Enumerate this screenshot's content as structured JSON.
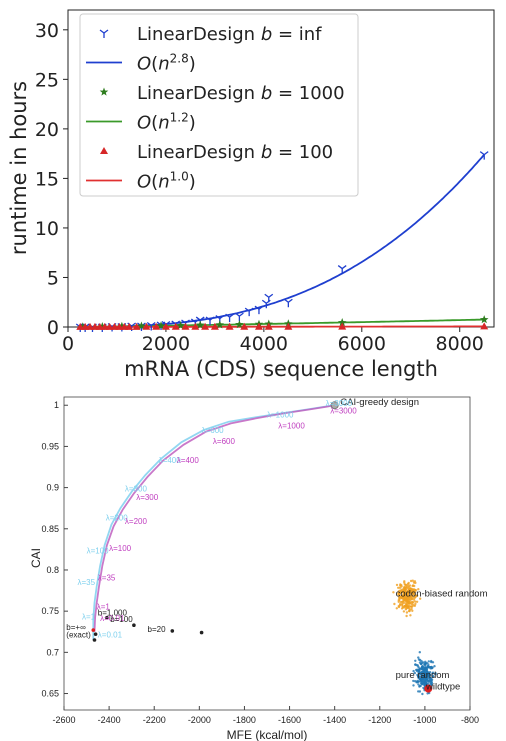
{
  "chart_data": [
    {
      "type": "scatter",
      "xlabel": "mRNA (CDS) sequence length",
      "ylabel": "runtime in hours",
      "xlim": [
        0,
        8700
      ],
      "ylim": [
        0,
        32
      ],
      "xticks": [
        "0",
        "2000",
        "4000",
        "6000",
        "8000"
      ],
      "yticks": [
        "0",
        "5",
        "10",
        "15",
        "20",
        "25",
        "30"
      ],
      "legend_position": "top-left",
      "legend": [
        {
          "label": "LinearDesign b = inf",
          "kind": "marker",
          "marker": "tri_down",
          "color": "#1f3fcf"
        },
        {
          "label": "O(n^2.8)",
          "kind": "line",
          "color": "#1f3fcf"
        },
        {
          "label": "LinearDesign b = 1000",
          "kind": "marker",
          "marker": "star",
          "color": "#2e7d1e"
        },
        {
          "label": "O(n^1.2)",
          "kind": "line",
          "color": "#3a9a2a"
        },
        {
          "label": "LinearDesign b = 100",
          "kind": "marker",
          "marker": "triangle",
          "color": "#d62728"
        },
        {
          "label": "O(n^1.0)",
          "kind": "line",
          "color": "#e03030"
        }
      ],
      "series": [
        {
          "name": "LinearDesign b = inf",
          "color": "#1f3fcf",
          "x": [
            250,
            350,
            500,
            700,
            900,
            1100,
            1300,
            1500,
            1700,
            1900,
            2000,
            2200,
            2400,
            2600,
            2700,
            2900,
            3100,
            3300,
            3500,
            3700,
            3900,
            4050,
            4100,
            4500,
            5600,
            8500
          ],
          "y": [
            0.0,
            0.0,
            0.0,
            0.0,
            0.05,
            0.05,
            0.1,
            0.1,
            0.15,
            0.2,
            0.25,
            0.3,
            0.4,
            0.5,
            0.7,
            0.7,
            0.85,
            1.0,
            1.1,
            1.6,
            1.8,
            2.4,
            3.0,
            2.5,
            5.9,
            17.4
          ]
        },
        {
          "name": "O(n^2.8)",
          "color": "#1f3fcf",
          "fit": {
            "coef": 17.4,
            "ref": 8500,
            "exp": 2.8
          }
        },
        {
          "name": "LinearDesign b = 1000",
          "color": "#2e7d1e",
          "x": [
            300,
            700,
            1100,
            1500,
            1900,
            2300,
            2700,
            3100,
            3500,
            3900,
            4100,
            4500,
            5600,
            8500
          ],
          "y": [
            0.03,
            0.05,
            0.08,
            0.1,
            0.12,
            0.15,
            0.2,
            0.22,
            0.25,
            0.28,
            0.3,
            0.32,
            0.45,
            0.75
          ]
        },
        {
          "name": "O(n^1.2)",
          "color": "#3a9a2a",
          "fit": {
            "coef": 0.75,
            "ref": 8500,
            "exp": 1.2
          }
        },
        {
          "name": "LinearDesign b = 100",
          "color": "#d62728",
          "x": [
            250,
            350,
            450,
            550,
            650,
            750,
            850,
            950,
            1050,
            1150,
            1250,
            1400,
            1600,
            1800,
            2000,
            2200,
            2400,
            2600,
            2800,
            3000,
            3300,
            3600,
            3900,
            4100,
            4500,
            5600,
            8500
          ],
          "y": [
            0.01,
            0.01,
            0.01,
            0.01,
            0.01,
            0.01,
            0.01,
            0.01,
            0.01,
            0.01,
            0.01,
            0.01,
            0.02,
            0.02,
            0.02,
            0.02,
            0.02,
            0.02,
            0.02,
            0.02,
            0.03,
            0.03,
            0.03,
            0.03,
            0.03,
            0.04,
            0.06
          ]
        },
        {
          "name": "O(n^1.0)",
          "color": "#e03030",
          "fit": {
            "coef": 0.06,
            "ref": 8500,
            "exp": 1.0
          }
        }
      ]
    },
    {
      "type": "scatter",
      "xlabel": "MFE (kcal/mol)",
      "ylabel": "CAI",
      "xlim": [
        -2600,
        -800
      ],
      "ylim": [
        0.63,
        1.01
      ],
      "xticks": [
        "-2600",
        "-2400",
        "-2200",
        "-2000",
        "-1800",
        "-1600",
        "-1400",
        "-1200",
        "-1000",
        "-800"
      ],
      "yticks": [
        "0.65",
        "0.7",
        "0.75",
        "0.8",
        "0.85",
        "0.9",
        "0.95",
        "1"
      ],
      "colors": {
        "cyan_curve": "#7fd0ee",
        "magenta_curve": "#c060c0",
        "orange_cloud": "#f0a020",
        "blue_cloud": "#1f77b4",
        "wildtype": "#e02020"
      },
      "series": [
        {
          "name": "cyan_curve",
          "color": "#7fd0ee",
          "x": [
            -2470,
            -2470,
            -2465,
            -2455,
            -2440,
            -2420,
            -2390,
            -2350,
            -2300,
            -2240,
            -2170,
            -2080,
            -1980,
            -1870,
            -1760,
            -1640,
            -1520,
            -1450,
            -1400
          ],
          "y": [
            0.715,
            0.74,
            0.76,
            0.78,
            0.805,
            0.83,
            0.855,
            0.875,
            0.895,
            0.915,
            0.935,
            0.955,
            0.97,
            0.98,
            0.985,
            0.99,
            0.995,
            0.998,
            1.0
          ]
        },
        {
          "name": "magenta_curve",
          "color": "#c060c0",
          "x": [
            -2465,
            -2462,
            -2455,
            -2445,
            -2430,
            -2410,
            -2380,
            -2340,
            -2290,
            -2230,
            -2160,
            -2070,
            -1970,
            -1860,
            -1750,
            -1630,
            -1510,
            -1440,
            -1400
          ],
          "y": [
            0.725,
            0.742,
            0.76,
            0.78,
            0.805,
            0.83,
            0.853,
            0.873,
            0.893,
            0.913,
            0.933,
            0.952,
            0.968,
            0.978,
            0.984,
            0.99,
            0.995,
            0.998,
            1.0
          ]
        },
        {
          "name": "points",
          "x": [
            -2465,
            -2410,
            -2290,
            -2120,
            -1990,
            -2470,
            -2460
          ],
          "y": [
            0.715,
            0.742,
            0.733,
            0.726,
            0.724,
            0.727,
            0.722
          ]
        }
      ],
      "annotations": [
        {
          "text": "CAI-greedy design",
          "x": -1375,
          "y": 1.0,
          "color": "#222"
        },
        {
          "text": "codon-biased random",
          "x": -1130,
          "y": 0.768,
          "color": "#222"
        },
        {
          "text": "pure random",
          "x": -1130,
          "y": 0.669,
          "color": "#222"
        },
        {
          "text": "wildtype",
          "x": -995,
          "y": 0.655,
          "color": "#222"
        },
        {
          "text": "λ=3000",
          "x": -1440,
          "y": 0.999,
          "color": "#7fd0ee"
        },
        {
          "text": "λ=3000",
          "x": -1420,
          "y": 0.99,
          "color": "#c040c0"
        },
        {
          "text": "λ=1000",
          "x": -1700,
          "y": 0.985,
          "color": "#7fd0ee"
        },
        {
          "text": "λ=1000",
          "x": -1650,
          "y": 0.972,
          "color": "#c040c0"
        },
        {
          "text": "λ=600",
          "x": -1990,
          "y": 0.966,
          "color": "#7fd0ee"
        },
        {
          "text": "λ=600",
          "x": -1940,
          "y": 0.953,
          "color": "#c040c0"
        },
        {
          "text": "λ=400",
          "x": -2180,
          "y": 0.93,
          "color": "#7fd0ee"
        },
        {
          "text": "λ=400",
          "x": -2100,
          "y": 0.93,
          "color": "#c040c0"
        },
        {
          "text": "λ=300",
          "x": -2330,
          "y": 0.895,
          "color": "#7fd0ee"
        },
        {
          "text": "λ=300",
          "x": -2280,
          "y": 0.885,
          "color": "#c040c0"
        },
        {
          "text": "λ=200",
          "x": -2415,
          "y": 0.86,
          "color": "#7fd0ee"
        },
        {
          "text": "λ=200",
          "x": -2330,
          "y": 0.856,
          "color": "#c040c0"
        },
        {
          "text": "λ=100",
          "x": -2500,
          "y": 0.82,
          "color": "#7fd0ee"
        },
        {
          "text": "λ=100",
          "x": -2400,
          "y": 0.823,
          "color": "#c040c0"
        },
        {
          "text": "λ=35",
          "x": -2540,
          "y": 0.782,
          "color": "#7fd0ee"
        },
        {
          "text": "λ=35",
          "x": -2450,
          "y": 0.787,
          "color": "#c040c0"
        },
        {
          "text": "λ=1",
          "x": -2520,
          "y": 0.74,
          "color": "#7fd0ee"
        },
        {
          "text": "λ=1",
          "x": -2455,
          "y": 0.752,
          "color": "#c040c0"
        },
        {
          "text": "λ=0.01",
          "x": -2440,
          "y": 0.738,
          "color": "#c040c0"
        },
        {
          "text": "λ=0.01",
          "x": -2450,
          "y": 0.718,
          "color": "#7fd0ee"
        },
        {
          "text": "b=1,000",
          "x": -2450,
          "y": 0.745,
          "color": "#222"
        },
        {
          "text": "b=100",
          "x": -2395,
          "y": 0.737,
          "color": "#222"
        },
        {
          "text": "b=20",
          "x": -2230,
          "y": 0.725,
          "color": "#222"
        },
        {
          "text": "b=+∞",
          "x": -2590,
          "y": 0.727,
          "color": "#222"
        },
        {
          "text": "(exact)",
          "x": -2590,
          "y": 0.718,
          "color": "#222"
        }
      ]
    }
  ]
}
